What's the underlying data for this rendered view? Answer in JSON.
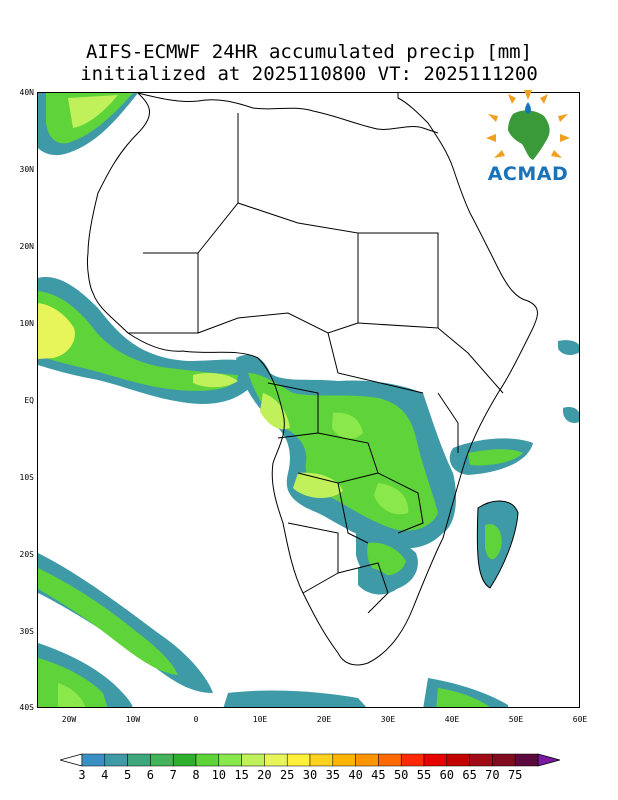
{
  "title": {
    "line1": "AIFS-ECMWF 24HR accumulated precip [mm]",
    "line2": "initialized at 2025110800 VT: 2025111200"
  },
  "logo": {
    "text": "ACMAD"
  },
  "axes": {
    "lat_labels": [
      "40N",
      "30N",
      "20N",
      "10N",
      "EQ",
      "10S",
      "20S",
      "30S",
      "40S"
    ],
    "lon_labels": [
      "20W",
      "10W",
      "0",
      "10E",
      "20E",
      "30E",
      "40E",
      "50E",
      "60E"
    ]
  },
  "colorbar": {
    "labels": [
      "3",
      "4",
      "5",
      "6",
      "7",
      "8",
      "10",
      "15",
      "20",
      "25",
      "30",
      "35",
      "40",
      "45",
      "50",
      "55",
      "60",
      "65",
      "70",
      "75"
    ],
    "colors": [
      "#3a8fc4",
      "#3f9aa8",
      "#3fa67e",
      "#43b35a",
      "#2eb02e",
      "#5fd33a",
      "#8ae84a",
      "#c0f05a",
      "#e8f55a",
      "#fff03c",
      "#ffd21e",
      "#ffb400",
      "#ff9400",
      "#ff6a00",
      "#ff2a00",
      "#e60000",
      "#c20000",
      "#a00a14",
      "#800a1e",
      "#5a0a3c"
    ],
    "under_color": "#ffffff",
    "over_color": "#7a1aa0"
  }
}
